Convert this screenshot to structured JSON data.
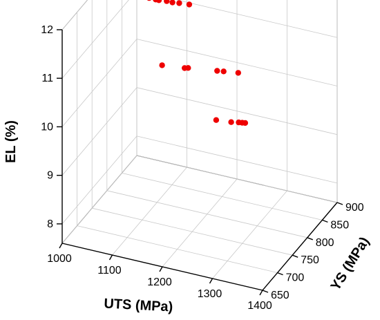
{
  "chart_data": {
    "type": "scatter",
    "dimensions": 3,
    "xlabel": "UTS (MPa)",
    "ylabel": "YS (MPa)",
    "zlabel": "EL (%)",
    "xlim": [
      1000,
      1400
    ],
    "ylim": [
      650,
      900
    ],
    "zlim": [
      7.6,
      12
    ],
    "x_ticks": [
      1000,
      1100,
      1200,
      1300,
      1400
    ],
    "y_ticks": [
      650,
      700,
      750,
      800,
      850,
      900
    ],
    "z_ticks": [
      8,
      9,
      10,
      11,
      12
    ],
    "grid": true,
    "marker_color": "#ee0000",
    "points": [
      {
        "x": 1000,
        "y": 870,
        "z": 11.17
      },
      {
        "x": 1012,
        "y": 868,
        "z": 11.18
      },
      {
        "x": 1030,
        "y": 867,
        "z": 11.19
      },
      {
        "x": 1045,
        "y": 866,
        "z": 11.2
      },
      {
        "x": 1058,
        "y": 866,
        "z": 11.2
      },
      {
        "x": 1065,
        "y": 865,
        "z": 11.21
      },
      {
        "x": 1080,
        "y": 866,
        "z": 11.22
      },
      {
        "x": 1092,
        "y": 865,
        "z": 11.23
      },
      {
        "x": 1105,
        "y": 866,
        "z": 11.24
      },
      {
        "x": 1125,
        "y": 866,
        "z": 11.26
      },
      {
        "x": 1110,
        "y": 800,
        "z": 10.45
      },
      {
        "x": 1155,
        "y": 800,
        "z": 10.5
      },
      {
        "x": 1162,
        "y": 800,
        "z": 10.52
      },
      {
        "x": 1220,
        "y": 800,
        "z": 10.6
      },
      {
        "x": 1233,
        "y": 800,
        "z": 10.62
      },
      {
        "x": 1262,
        "y": 800,
        "z": 10.66
      },
      {
        "x": 1255,
        "y": 738,
        "z": 10.12
      },
      {
        "x": 1285,
        "y": 738,
        "z": 10.15
      },
      {
        "x": 1300,
        "y": 738,
        "z": 10.18
      },
      {
        "x": 1307,
        "y": 738,
        "z": 10.19
      },
      {
        "x": 1313,
        "y": 738,
        "z": 10.2
      }
    ]
  }
}
